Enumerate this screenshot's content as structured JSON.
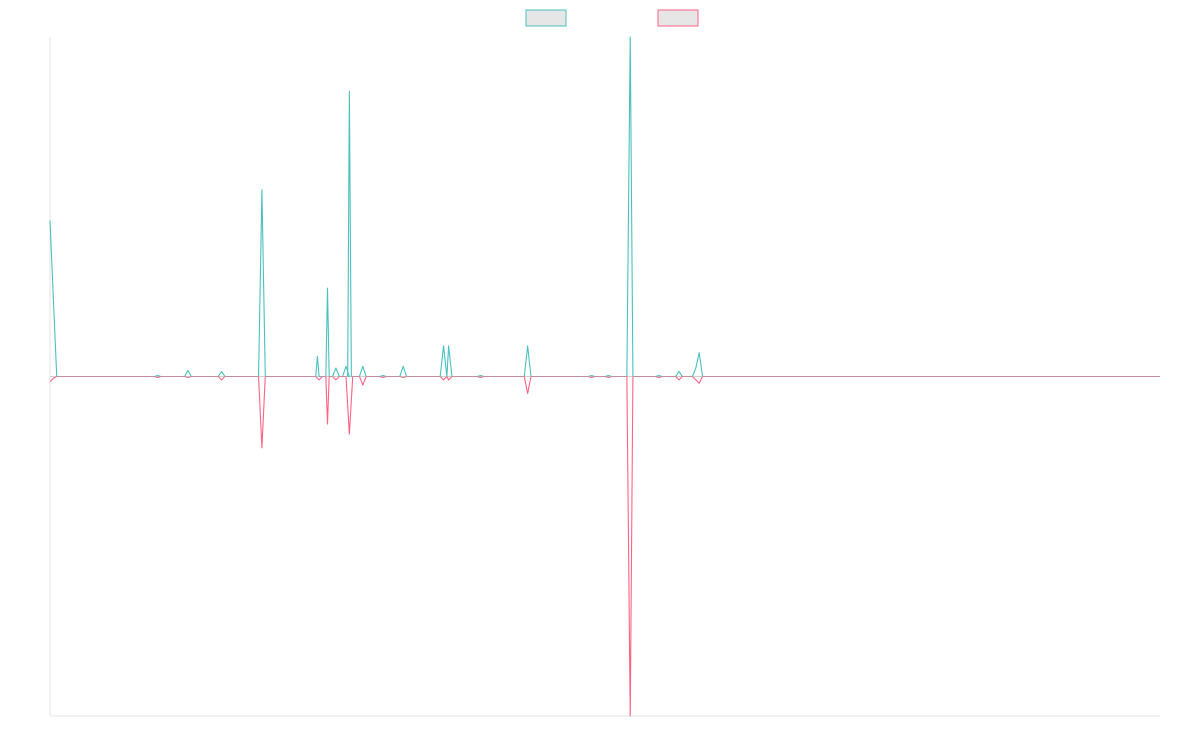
{
  "chart_data": {
    "type": "line",
    "title": "",
    "xlabel": "",
    "ylabel": "",
    "legend": {
      "placement": "top-center",
      "entries": [
        {
          "color": "#4bc0c0",
          "label": ""
        },
        {
          "color": "#ff6384",
          "label": ""
        }
      ]
    },
    "grid": false,
    "x_range": [
      0,
      330
    ],
    "ylim": [
      -100,
      100
    ],
    "zero_line_color": "#9ab0b0",
    "series": [
      {
        "color": "#4bc0c0",
        "points": [
          [
            0,
            46
          ],
          [
            1,
            23
          ],
          [
            2,
            0
          ],
          [
            31,
            0
          ],
          [
            32,
            0.3
          ],
          [
            33,
            0
          ],
          [
            40,
            0
          ],
          [
            41,
            1.8
          ],
          [
            42,
            0
          ],
          [
            50,
            0
          ],
          [
            51,
            1.5
          ],
          [
            52,
            0
          ],
          [
            62,
            0
          ],
          [
            63,
            55
          ],
          [
            64,
            0
          ],
          [
            79,
            0
          ],
          [
            79.5,
            6
          ],
          [
            80,
            0
          ],
          [
            82,
            0
          ],
          [
            82.5,
            26
          ],
          [
            83,
            0
          ],
          [
            84,
            0
          ],
          [
            85,
            2.5
          ],
          [
            86,
            0
          ],
          [
            87,
            0
          ],
          [
            88,
            3
          ],
          [
            89,
            0
          ],
          [
            88.5,
            0
          ],
          [
            89,
            84
          ],
          [
            89.6,
            0
          ],
          [
            92,
            0
          ],
          [
            93,
            3
          ],
          [
            94,
            0
          ],
          [
            98,
            0
          ],
          [
            99,
            0.3
          ],
          [
            100,
            0
          ],
          [
            104,
            0
          ],
          [
            105,
            3
          ],
          [
            106,
            0
          ],
          [
            116,
            0
          ],
          [
            117,
            9
          ],
          [
            118,
            0
          ],
          [
            118.5,
            9
          ],
          [
            119.5,
            0
          ],
          [
            127,
            0
          ],
          [
            128,
            0.3
          ],
          [
            129,
            0
          ],
          [
            141,
            0
          ],
          [
            142,
            9
          ],
          [
            143,
            0
          ],
          [
            160,
            0
          ],
          [
            161,
            0.3
          ],
          [
            162,
            0
          ],
          [
            165,
            0
          ],
          [
            166,
            0.3
          ],
          [
            167,
            0
          ],
          [
            171.5,
            0
          ],
          [
            172.5,
            100
          ],
          [
            173.3,
            0
          ],
          [
            180,
            0
          ],
          [
            181,
            0.3
          ],
          [
            182,
            0
          ],
          [
            186,
            0
          ],
          [
            187,
            1.5
          ],
          [
            188,
            0
          ],
          [
            191,
            0
          ],
          [
            192,
            2.5
          ],
          [
            193,
            7
          ],
          [
            194,
            0
          ],
          [
            330,
            0
          ]
        ]
      },
      {
        "color": "#ff6384",
        "points": [
          [
            0,
            -1.5
          ],
          [
            1,
            -0.5
          ],
          [
            2,
            0
          ],
          [
            31,
            0
          ],
          [
            32,
            -0.3
          ],
          [
            33,
            0
          ],
          [
            40,
            0
          ],
          [
            41,
            -0.3
          ],
          [
            42,
            0
          ],
          [
            50,
            0
          ],
          [
            51,
            -1
          ],
          [
            52,
            0
          ],
          [
            62,
            0
          ],
          [
            63,
            -21
          ],
          [
            64,
            0
          ],
          [
            79,
            0
          ],
          [
            80,
            -1
          ],
          [
            81,
            0
          ],
          [
            82,
            0
          ],
          [
            82.5,
            -14
          ],
          [
            83,
            0
          ],
          [
            84,
            0
          ],
          [
            85,
            -1
          ],
          [
            86,
            0
          ],
          [
            88,
            0
          ],
          [
            89,
            -17
          ],
          [
            90,
            0
          ],
          [
            92,
            0
          ],
          [
            93,
            -2.5
          ],
          [
            94,
            0
          ],
          [
            98,
            0
          ],
          [
            99,
            -0.3
          ],
          [
            100,
            0
          ],
          [
            104,
            0
          ],
          [
            105,
            -0.3
          ],
          [
            106,
            0
          ],
          [
            116,
            0
          ],
          [
            117,
            -1
          ],
          [
            118,
            0
          ],
          [
            118.5,
            -1
          ],
          [
            119.5,
            0
          ],
          [
            127,
            0
          ],
          [
            128,
            -0.3
          ],
          [
            129,
            0
          ],
          [
            141,
            0
          ],
          [
            142,
            -5
          ],
          [
            143,
            0
          ],
          [
            160,
            0
          ],
          [
            161,
            -0.3
          ],
          [
            162,
            0
          ],
          [
            165,
            0
          ],
          [
            166,
            -0.3
          ],
          [
            167,
            0
          ],
          [
            171.5,
            0
          ],
          [
            172.5,
            -100
          ],
          [
            173.3,
            0
          ],
          [
            180,
            0
          ],
          [
            181,
            -0.3
          ],
          [
            182,
            0
          ],
          [
            186,
            0
          ],
          [
            187,
            -1
          ],
          [
            188,
            0
          ],
          [
            191,
            0
          ],
          [
            192,
            -1
          ],
          [
            193,
            -2
          ],
          [
            194,
            0
          ],
          [
            330,
            0
          ]
        ]
      }
    ]
  }
}
